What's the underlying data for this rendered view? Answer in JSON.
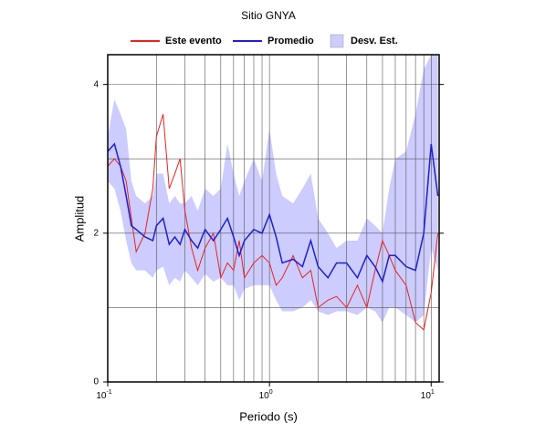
{
  "chart_data": {
    "type": "line",
    "title": "Sitio GNYA",
    "xlabel": "Periodo (s)",
    "ylabel": "Amplitud",
    "xscale": "log",
    "xlim": [
      0.1,
      11.2
    ],
    "ylim": [
      0,
      4.4
    ],
    "xticks": [
      {
        "value": 0.1,
        "label": "10",
        "exponent": "-1"
      },
      {
        "value": 1,
        "label": "10",
        "exponent": "0"
      },
      {
        "value": 10,
        "label": "10",
        "exponent": "1"
      }
    ],
    "xgrid": [
      0.2,
      0.3,
      0.4,
      0.5,
      0.6,
      0.7,
      0.8,
      0.9,
      1,
      2,
      3,
      4,
      5,
      6,
      7,
      8,
      9,
      10
    ],
    "yticks": [
      0,
      2,
      4
    ],
    "ygrid": [
      1,
      2,
      3,
      4
    ],
    "x": [
      0.1,
      0.11,
      0.12,
      0.13,
      0.14,
      0.15,
      0.17,
      0.19,
      0.2,
      0.22,
      0.24,
      0.26,
      0.28,
      0.3,
      0.33,
      0.36,
      0.4,
      0.45,
      0.5,
      0.55,
      0.6,
      0.65,
      0.7,
      0.8,
      0.9,
      1.0,
      1.1,
      1.2,
      1.4,
      1.6,
      1.8,
      2.0,
      2.3,
      2.6,
      3.0,
      3.5,
      4.0,
      4.5,
      5,
      5.5,
      6,
      7,
      8,
      9,
      10,
      11
    ],
    "band": {
      "name": "Desv. Est.",
      "color": "#ccccff",
      "upper": [
        3.3,
        3.8,
        3.6,
        3.4,
        2.7,
        2.5,
        2.4,
        2.5,
        2.8,
        2.8,
        2.4,
        2.5,
        2.4,
        2.4,
        2.5,
        2.3,
        2.6,
        2.5,
        2.6,
        3.2,
        2.8,
        2.5,
        2.7,
        3.0,
        2.7,
        3.4,
        2.8,
        2.5,
        2.4,
        2.6,
        2.8,
        2.2,
        2.0,
        1.8,
        1.9,
        1.9,
        2.2,
        2.1,
        2.0,
        2.6,
        3.0,
        3.1,
        3.6,
        4.2,
        4.4,
        4.4
      ],
      "lower": [
        2.7,
        2.6,
        2.3,
        1.9,
        1.6,
        1.5,
        1.5,
        1.4,
        1.5,
        1.55,
        1.3,
        1.4,
        1.35,
        1.5,
        1.4,
        1.3,
        1.45,
        1.35,
        1.4,
        1.3,
        1.3,
        1.1,
        1.25,
        1.3,
        1.3,
        1.3,
        1.1,
        0.95,
        0.95,
        1.0,
        1.1,
        0.95,
        0.9,
        0.95,
        0.95,
        0.9,
        1.0,
        0.95,
        0.8,
        1.0,
        1.0,
        0.9,
        0.8,
        0.9,
        1.8,
        1.5
      ]
    },
    "series": [
      {
        "name": "Este evento",
        "color": "#e8231e",
        "values": [
          2.9,
          3.0,
          2.9,
          2.7,
          2.2,
          1.75,
          2.0,
          2.6,
          3.3,
          3.6,
          2.6,
          2.8,
          3.0,
          2.3,
          1.8,
          1.5,
          1.8,
          2.0,
          1.4,
          1.6,
          1.5,
          1.9,
          1.4,
          1.6,
          1.7,
          1.6,
          1.3,
          1.4,
          1.7,
          1.4,
          1.5,
          1.0,
          1.1,
          1.15,
          1.0,
          1.3,
          1.0,
          1.5,
          1.9,
          1.7,
          1.5,
          1.3,
          0.8,
          0.7,
          1.2,
          2.0
        ]
      },
      {
        "name": "Promedio",
        "color": "#1f1fcf",
        "values": [
          3.1,
          3.2,
          2.9,
          2.5,
          2.1,
          2.05,
          1.95,
          1.9,
          2.1,
          2.2,
          1.85,
          1.95,
          1.85,
          2.05,
          1.9,
          1.8,
          2.05,
          1.9,
          2.05,
          2.2,
          1.95,
          1.7,
          1.9,
          2.05,
          2.0,
          2.25,
          1.95,
          1.6,
          1.65,
          1.55,
          1.9,
          1.55,
          1.4,
          1.6,
          1.6,
          1.4,
          1.7,
          1.55,
          1.35,
          1.7,
          1.7,
          1.55,
          1.5,
          2.0,
          3.2,
          2.5
        ]
      }
    ]
  }
}
